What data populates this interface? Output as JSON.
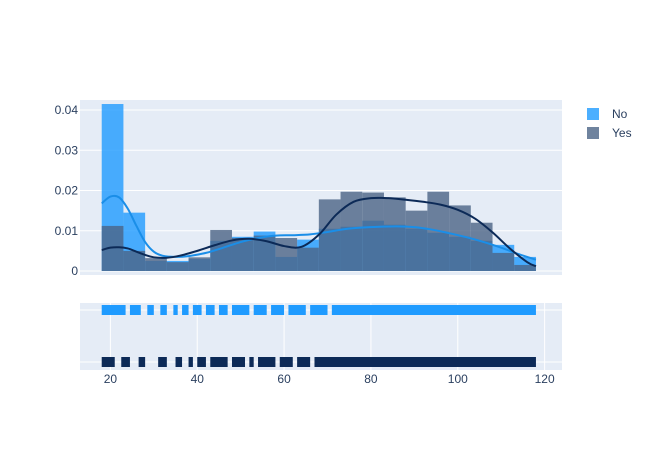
{
  "chart_data": {
    "type": "histogram",
    "bin_edges": [
      18,
      23,
      28,
      33,
      38,
      43,
      48,
      53,
      58,
      63,
      68,
      73,
      78,
      83,
      88,
      93,
      98,
      103,
      108,
      113,
      118
    ],
    "series": [
      {
        "name": "No",
        "color": "#1f9bff",
        "density": [
          0.0415,
          0.0145,
          0.0025,
          0.0025,
          0.003,
          0.0075,
          0.0085,
          0.0098,
          0.0035,
          0.0078,
          0.0105,
          0.011,
          0.0125,
          0.0115,
          0.0105,
          0.0095,
          0.0085,
          0.0075,
          0.0065,
          0.0035
        ],
        "kde_x": [
          18,
          20,
          22,
          24,
          26,
          28,
          30,
          32,
          35,
          38,
          42,
          46,
          50,
          54,
          58,
          62,
          66,
          70,
          74,
          78,
          82,
          86,
          90,
          94,
          98,
          102,
          106,
          110,
          114,
          118
        ],
        "kde_y": [
          0.0168,
          0.0185,
          0.0183,
          0.0155,
          0.0112,
          0.0072,
          0.0048,
          0.0038,
          0.0035,
          0.0037,
          0.0045,
          0.0058,
          0.0072,
          0.0082,
          0.0088,
          0.0089,
          0.0091,
          0.0097,
          0.0104,
          0.0108,
          0.011,
          0.0111,
          0.0109,
          0.0103,
          0.0094,
          0.0084,
          0.0072,
          0.0058,
          0.0042,
          0.0028
        ],
        "rug_ranges": [
          [
            18,
            23.5
          ],
          [
            24.5,
            27
          ],
          [
            28.5,
            30
          ],
          [
            31.5,
            33
          ],
          [
            34.5,
            35.5
          ],
          [
            36.5,
            38
          ],
          [
            39,
            41
          ],
          [
            42,
            44
          ],
          [
            45,
            47
          ],
          [
            48,
            52
          ],
          [
            53,
            56
          ],
          [
            57,
            60
          ],
          [
            61,
            65
          ],
          [
            66,
            70
          ],
          [
            71,
            118
          ]
        ]
      },
      {
        "name": "Yes",
        "color": "#4b6486",
        "density": [
          0.0112,
          0.005,
          0.0032,
          0.0022,
          0.0034,
          0.0102,
          0.0082,
          0.0088,
          0.0082,
          0.0058,
          0.0178,
          0.0197,
          0.0195,
          0.0183,
          0.015,
          0.0197,
          0.0163,
          0.012,
          0.0045,
          0.0015
        ],
        "kde_x": [
          18,
          20,
          22,
          24,
          26,
          28,
          30,
          33,
          36,
          40,
          44,
          48,
          52,
          56,
          60,
          64,
          68,
          72,
          76,
          80,
          84,
          88,
          92,
          96,
          100,
          104,
          108,
          112,
          116,
          118
        ],
        "kde_y": [
          0.0052,
          0.0058,
          0.0059,
          0.0056,
          0.0048,
          0.004,
          0.0034,
          0.0033,
          0.0038,
          0.005,
          0.0064,
          0.0076,
          0.008,
          0.0074,
          0.0062,
          0.006,
          0.009,
          0.014,
          0.0172,
          0.0181,
          0.0181,
          0.0177,
          0.0172,
          0.0165,
          0.0152,
          0.013,
          0.0096,
          0.0056,
          0.0022,
          0.0012
        ],
        "rug_ranges": [
          [
            18,
            21
          ],
          [
            22.5,
            24.5
          ],
          [
            26.5,
            28
          ],
          [
            31,
            33
          ],
          [
            35,
            36.5
          ],
          [
            38,
            39
          ],
          [
            40,
            42
          ],
          [
            43,
            47
          ],
          [
            48,
            51
          ],
          [
            52,
            53
          ],
          [
            54,
            58
          ],
          [
            59,
            62
          ],
          [
            63,
            66
          ],
          [
            67,
            118
          ]
        ]
      }
    ],
    "y_ticks": [
      "0",
      "0.01",
      "0.02",
      "0.03",
      "0.04"
    ],
    "x_ticks": [
      "20",
      "40",
      "60",
      "80",
      "100",
      "120"
    ],
    "ylim": [
      0,
      0.0425
    ],
    "xlim": [
      13,
      124
    ],
    "legend_position": "top-right",
    "plot_bg": "#e5ecf6",
    "grid": true
  }
}
